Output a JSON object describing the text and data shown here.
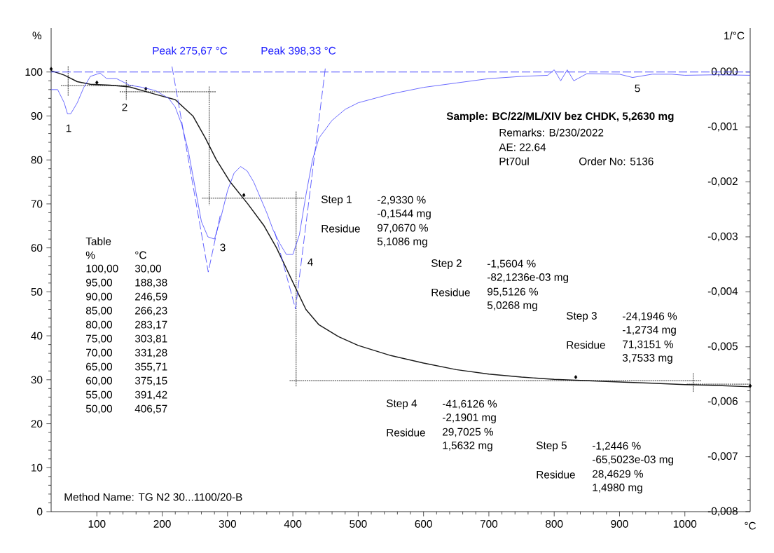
{
  "chart_data": {
    "type": "line",
    "xlabel": "°C",
    "ylabel": "%",
    "y2label": "1/°C",
    "xlim": [
      30,
      1100
    ],
    "xticks": [
      100,
      200,
      300,
      400,
      500,
      600,
      700,
      800,
      900,
      1000
    ],
    "ylim": [
      0,
      110
    ],
    "yticks": [
      0,
      10,
      20,
      30,
      40,
      50,
      60,
      70,
      80,
      90,
      100
    ],
    "y2lim": [
      -0.008,
      0.0008
    ],
    "y2ticks": [
      {
        "value": 0,
        "label": "0,000"
      },
      {
        "value": -0.001,
        "label": "-0,001"
      },
      {
        "value": -0.002,
        "label": "-0,002"
      },
      {
        "value": -0.003,
        "label": "-0,003"
      },
      {
        "value": -0.004,
        "label": "-0,004"
      },
      {
        "value": -0.005,
        "label": "-0,005"
      },
      {
        "value": -0.006,
        "label": "-0,006"
      },
      {
        "value": -0.007,
        "label": "-0,007"
      },
      {
        "value": -0.008,
        "label": "-0,008"
      }
    ],
    "series": [
      {
        "color": "#1a1a1a",
        "x": [
          30,
          50,
          70,
          90,
          120,
          150,
          188,
          220,
          247,
          266,
          283,
          304,
          331,
          356,
          375,
          391,
          407,
          420,
          440,
          470,
          500,
          550,
          600,
          650,
          700,
          750,
          800,
          850,
          900,
          950,
          1000,
          1050,
          1100
        ],
        "values": [
          100.3,
          99.3,
          97.8,
          97.2,
          97.0,
          96.6,
          95,
          93.7,
          90,
          85,
          80,
          75,
          70,
          65,
          60,
          55,
          50,
          46,
          42.5,
          39.8,
          37.8,
          35.5,
          33.8,
          32.3,
          31.3,
          30.6,
          30.1,
          29.8,
          29.5,
          29.2,
          28.9,
          28.7,
          28.4
        ]
      },
      {
        "axis": "y2",
        "color": "#4646ff",
        "x": [
          30,
          40,
          50,
          55,
          60,
          70,
          80,
          90,
          100,
          105,
          115,
          130,
          150,
          170,
          190,
          210,
          220,
          230,
          240,
          250,
          260,
          270,
          280,
          290,
          300,
          310,
          320,
          330,
          340,
          350,
          360,
          370,
          380,
          390,
          400,
          410,
          420,
          430,
          440,
          460,
          480,
          500,
          550,
          600,
          650,
          700,
          750,
          790,
          800,
          810,
          820,
          830,
          850,
          900,
          920,
          950,
          980,
          1000,
          1050,
          1100
        ],
        "values": [
          -0.00032,
          -0.00032,
          -0.00056,
          -0.00076,
          -0.00076,
          -0.00056,
          -0.00028,
          -8e-05,
          -4e-05,
          -2e-05,
          -0.00012,
          -0.00012,
          -0.00024,
          -0.00028,
          -0.00034,
          -0.00048,
          -0.00064,
          -0.00096,
          -0.00144,
          -0.00208,
          -0.00272,
          -0.003,
          -0.00304,
          -0.00264,
          -0.00216,
          -0.00184,
          -0.00172,
          -0.0018,
          -0.002,
          -0.00228,
          -0.00256,
          -0.00288,
          -0.00312,
          -0.00332,
          -0.00332,
          -0.00296,
          -0.00224,
          -0.0016,
          -0.0012,
          -0.00088,
          -0.00068,
          -0.00056,
          -0.0004,
          -0.00028,
          -0.0002,
          -0.00012,
          -8e-05,
          -6e-05,
          4e-05,
          -0.00016,
          4e-05,
          -0.00016,
          -3e-05,
          -4e-05,
          -0.0001,
          -4e-05,
          -4e-05,
          -6e-05,
          -5e-05,
          -6e-05
        ]
      },
      {
        "axis": "y2",
        "color": "#3c3cff",
        "line_style": "dashed",
        "x": [
          215,
          270.5,
          289
        ],
        "values": [
          0.0001,
          -0.00364,
          -0.0026
        ]
      },
      {
        "axis": "y2",
        "color": "#3c3cff",
        "line_style": "dashed",
        "x": [
          372,
          404,
          450
        ],
        "values": [
          -0.0029,
          -0.00431,
          0.0001
        ]
      },
      {
        "color": "#000000",
        "line_style": "dotted",
        "x": [
          45,
          156
        ],
        "values": [
          96.9,
          96.9
        ]
      },
      {
        "color": "#000000",
        "line_style": "dotted",
        "x": [
          56,
          56
        ],
        "values": [
          101.3,
          94.5
        ]
      },
      {
        "color": "#000000",
        "line_style": "dotted",
        "x": [
          135,
          282
        ],
        "values": [
          95.5,
          95.5
        ]
      },
      {
        "color": "#000000",
        "line_style": "dotted",
        "x": [
          145,
          145
        ],
        "values": [
          98.2,
          93.6
        ]
      },
      {
        "color": "#000000",
        "line_style": "dotted",
        "x": [
          272,
          272
        ],
        "values": [
          96.7,
          69.7
        ]
      },
      {
        "color": "#000000",
        "line_style": "dotted",
        "x": [
          261,
          417
        ],
        "values": [
          71.3,
          71.3
        ]
      },
      {
        "color": "#000000",
        "line_style": "dotted",
        "x": [
          405,
          405
        ],
        "values": [
          72.8,
          28.5
        ]
      },
      {
        "color": "#000000",
        "line_style": "dotted",
        "x": [
          395,
          1025
        ],
        "values": [
          29.8,
          29.8
        ]
      },
      {
        "color": "#000000",
        "line_style": "dotted",
        "x": [
          1013,
          1013
        ],
        "values": [
          31.5,
          27.2
        ]
      },
      {
        "color": "#000000",
        "line_style": "dotted",
        "x": [
          1003,
          1100
        ],
        "values": [
          29.0,
          29.0
        ]
      },
      {
        "type": "scatter",
        "marker": "diamond",
        "color": "#000000",
        "x": [
          30,
          100,
          175,
          325,
          833,
          1100
        ],
        "values": [
          100.7,
          97.6,
          96.2,
          72.0,
          30.6,
          28.6
        ]
      }
    ],
    "ref_lines": [
      {
        "axis": "y2",
        "value": 0,
        "color": "#3c3cff",
        "line_style": "dashed"
      }
    ],
    "annotations": [
      "Peak  275,67 °C",
      "Peak  398,33 °C",
      "Sample: BC/22/ML/XIV bez CHDK, 5,2630 mg",
      "Remarks: B/230/2022",
      "AE: 22.64",
      "Pt70ul",
      "Order No: 5136",
      "Step  1",
      "-2,9330 %",
      "-0,1544 mg",
      "Residue",
      "97,0670 %",
      "5,1086 mg",
      "Step  2",
      "-1,5604 %",
      "-82,1236e-03 mg",
      "Residue",
      "95,5126 %",
      "5,0268 mg",
      "Step  3",
      "-24,1946 %",
      "-1,2734 mg",
      "Residue",
      "71,3151 %",
      "3,7533 mg",
      "Step  4",
      "-41,6126 %",
      "-2,1901 mg",
      "Residue",
      "29,7025 %",
      "1,5632 mg",
      "Step  5",
      "-1,2446 %",
      "-65,5023e-03 mg",
      "Residue",
      "28,4629 %",
      "1,4980 mg",
      "Table",
      "%",
      "°C",
      "100,00",
      "30,00",
      "95,00",
      "188,38",
      "90,00",
      "246,59",
      "85,00",
      "266,23",
      "80,00",
      "283,17",
      "75,00",
      "303,81",
      "70,00",
      "331,28",
      "65,00",
      "355,71",
      "60,00",
      "375,15",
      "55,00",
      "391,42",
      "50,00",
      "406,57",
      "Method Name: TG N2 30...1100/20-B",
      "1",
      "2",
      "3",
      "4",
      "5"
    ]
  }
}
